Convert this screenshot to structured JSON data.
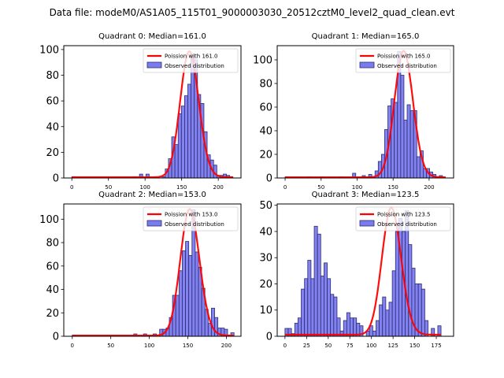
{
  "suptitle": "Data file: modeM0/AS1A05_115T01_9000003030_20512cztM0_level2_quad_clean.evt",
  "chart_data": [
    {
      "type": "bar",
      "title": "Quadrant 0: Median=161.0",
      "median": 161.0,
      "xlabel": "",
      "ylabel": "",
      "xlim": [
        -11,
        231
      ],
      "ylim": [
        0,
        103
      ],
      "xticks": [
        0,
        50,
        100,
        150,
        200
      ],
      "yticks": [
        0,
        20,
        40,
        60,
        80,
        100
      ],
      "grid": false,
      "legend": {
        "placement": "top-right",
        "entries": [
          "Poission with 161.0",
          "Observed distribution"
        ]
      },
      "bin_edges_start": 0,
      "bin_width": 4.4,
      "values": [
        1,
        0,
        0,
        0,
        0,
        0,
        0,
        0,
        0,
        0,
        0,
        0,
        0,
        0,
        0,
        0,
        0,
        0,
        0,
        1,
        0,
        3,
        0,
        3,
        0,
        0,
        0,
        0,
        1,
        7,
        15,
        32,
        26,
        50,
        56,
        64,
        73,
        96,
        92,
        65,
        58,
        36,
        18,
        14,
        10,
        2,
        2,
        3,
        2,
        1
      ],
      "poisson_mean": 161.0,
      "poisson_peak": 98
    },
    {
      "type": "bar",
      "title": "Quadrant 1: Median=165.0",
      "median": 165.0,
      "xlabel": "",
      "ylabel": "",
      "xlim": [
        -11,
        234
      ],
      "ylim": [
        0,
        112
      ],
      "xticks": [
        0,
        50,
        100,
        150,
        200
      ],
      "yticks": [
        0,
        20,
        40,
        60,
        80,
        100
      ],
      "grid": false,
      "legend": {
        "placement": "top-right",
        "entries": [
          "Poission with 165.0",
          "Observed distribution"
        ]
      },
      "bin_edges_start": 0,
      "bin_width": 4.46,
      "values": [
        1,
        0,
        0,
        0,
        0,
        0,
        0,
        1,
        0,
        0,
        0,
        1,
        0,
        0,
        0,
        0,
        0,
        1,
        0,
        0,
        0,
        4,
        0,
        0,
        2,
        0,
        3,
        1,
        6,
        14,
        20,
        41,
        61,
        67,
        64,
        107,
        87,
        49,
        62,
        57,
        57,
        18,
        23,
        8,
        8,
        5,
        3,
        1,
        2,
        0
      ],
      "poisson_mean": 165.0,
      "poisson_peak": 107
    },
    {
      "type": "bar",
      "title": "Quadrant 2: Median=153.0",
      "median": 153.0,
      "xlabel": "",
      "ylabel": "",
      "xlim": [
        -11,
        219
      ],
      "ylim": [
        0,
        113
      ],
      "xticks": [
        0,
        50,
        100,
        150,
        200
      ],
      "yticks": [
        0,
        20,
        40,
        60,
        80,
        100
      ],
      "grid": false,
      "legend": {
        "placement": "top-right",
        "entries": [
          "Poission with 153.0",
          "Observed distribution"
        ]
      },
      "bin_edges_start": 0,
      "bin_width": 4.2,
      "values": [
        1,
        0,
        0,
        0,
        0,
        0,
        0,
        0,
        0,
        0,
        0,
        0,
        0,
        0,
        0,
        0,
        0,
        0,
        0,
        2,
        0,
        0,
        2,
        0,
        0,
        2,
        0,
        6,
        6,
        7,
        16,
        35,
        35,
        56,
        73,
        81,
        69,
        108,
        72,
        59,
        41,
        23,
        11,
        24,
        16,
        7,
        7,
        6,
        0,
        3
      ],
      "poisson_mean": 153.0,
      "poisson_peak": 108
    },
    {
      "type": "bar",
      "title": "Quadrant 3: Median=123.5",
      "median": 123.5,
      "xlabel": "",
      "ylabel": "",
      "xlim": [
        -9,
        195
      ],
      "ylim": [
        0,
        50.5
      ],
      "xticks": [
        0,
        25,
        50,
        75,
        100,
        125,
        150,
        175
      ],
      "yticks": [
        0,
        10,
        20,
        30,
        40,
        50
      ],
      "grid": false,
      "legend": {
        "placement": "top-right",
        "entries": [
          "Poission with 123.5",
          "Observed distribution"
        ]
      },
      "bin_edges_start": 0,
      "bin_width": 3.76,
      "values": [
        3,
        3,
        1,
        5,
        7,
        18,
        22,
        29,
        22,
        42,
        39,
        23,
        28,
        22,
        16,
        15,
        7,
        2,
        6,
        9,
        7,
        7,
        5,
        4,
        0,
        2,
        4,
        2,
        6,
        12,
        15,
        10,
        13,
        25,
        40,
        45,
        40,
        48,
        35,
        26,
        20,
        20,
        18,
        6,
        0,
        3,
        0,
        4
      ],
      "poisson_mean": 123.5,
      "poisson_peak": 48.5
    }
  ],
  "colors": {
    "bar_fill": "#7b7bf0",
    "bar_edge": "#2c2c70",
    "poisson_line": "#ff0000"
  }
}
